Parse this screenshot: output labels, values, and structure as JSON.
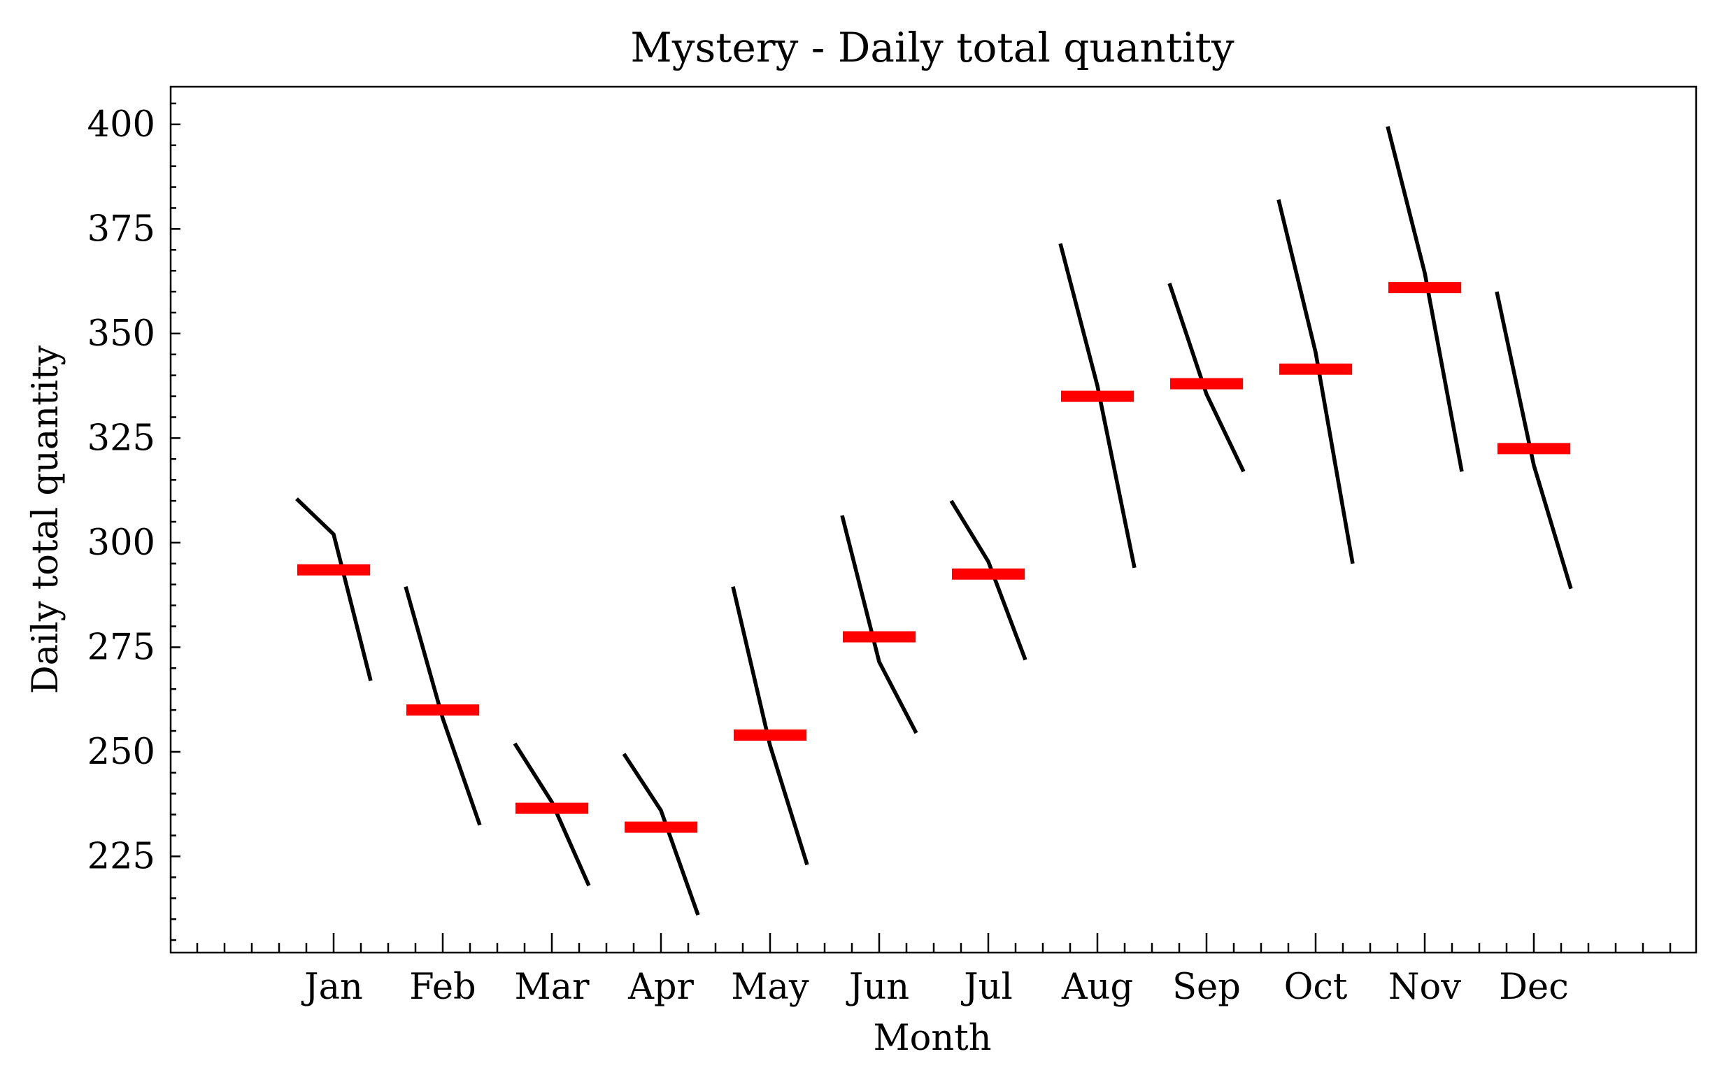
{
  "chart_data": {
    "type": "line",
    "title": "Mystery - Daily total quantity",
    "xlabel": "Month",
    "ylabel": "Daily total quantity",
    "ylim": [
      202,
      409
    ],
    "yticks": [
      225,
      250,
      275,
      300,
      325,
      350,
      375,
      400
    ],
    "ytick_labels": [
      "225",
      "250",
      "275",
      "300",
      "325",
      "350",
      "375",
      "400"
    ],
    "categories": [
      "Jan",
      "Feb",
      "Mar",
      "Apr",
      "May",
      "Jun",
      "Jul",
      "Aug",
      "Sep",
      "Oct",
      "Nov",
      "Dec"
    ],
    "subseries": [
      {
        "month": "Jan",
        "values": [
          310.5,
          302,
          267
        ],
        "mean": 293.5
      },
      {
        "month": "Feb",
        "values": [
          289.5,
          258,
          232.5
        ],
        "mean": 260
      },
      {
        "month": "Mar",
        "values": [
          252,
          238,
          218
        ],
        "mean": 236.5
      },
      {
        "month": "Apr",
        "values": [
          249.5,
          236,
          211
        ],
        "mean": 232
      },
      {
        "month": "May",
        "values": [
          289.5,
          251.5,
          223
        ],
        "mean": 254
      },
      {
        "month": "Jun",
        "values": [
          306.5,
          271.5,
          254.5
        ],
        "mean": 277.5
      },
      {
        "month": "Jul",
        "values": [
          310,
          295.5,
          272
        ],
        "mean": 292.5
      },
      {
        "month": "Aug",
        "values": [
          371.5,
          337.5,
          294
        ],
        "mean": 335
      },
      {
        "month": "Sep",
        "values": [
          362,
          335.5,
          317
        ],
        "mean": 338
      },
      {
        "month": "Oct",
        "values": [
          382,
          345.5,
          295
        ],
        "mean": 341.5
      },
      {
        "month": "Nov",
        "values": [
          399.5,
          364.5,
          317
        ],
        "mean": 361
      },
      {
        "month": "Dec",
        "values": [
          360,
          318.5,
          289
        ],
        "mean": 322.5
      }
    ],
    "mean_color": "#ff0000",
    "series_color": "#000000",
    "grid": false,
    "legend": "none"
  }
}
